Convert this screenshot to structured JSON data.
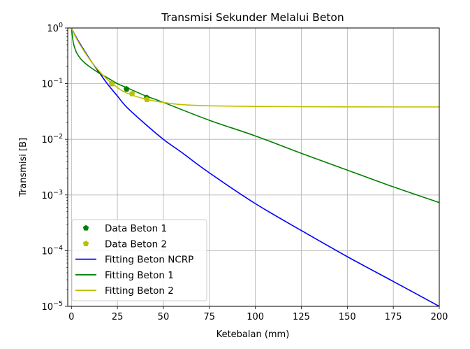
{
  "chart_data": {
    "type": "line",
    "title": "Transmisi Sekunder Melalui Beton",
    "xlabel": "Ketebalan (mm)",
    "ylabel": "Transmisi [B]",
    "xlim": [
      -2,
      200
    ],
    "ylim": [
      1e-05,
      1
    ],
    "yscale": "log",
    "grid": true,
    "legend_position": "lower-left",
    "x_ticks": [
      0,
      25,
      50,
      75,
      100,
      125,
      150,
      175,
      200
    ],
    "y_ticks": [
      {
        "value": 1,
        "base": "10",
        "exp": "0"
      },
      {
        "value": 0.1,
        "base": "10",
        "exp": "−1"
      },
      {
        "value": 0.01,
        "base": "10",
        "exp": "−2"
      },
      {
        "value": 0.001,
        "base": "10",
        "exp": "−3"
      },
      {
        "value": 0.0001,
        "base": "10",
        "exp": "−4"
      },
      {
        "value": 1e-05,
        "base": "10",
        "exp": "−5"
      }
    ],
    "series": [
      {
        "name": "Data Beton 1",
        "kind": "points",
        "marker": "pentagon",
        "color": "#008000",
        "x": [
          22,
          30,
          41
        ],
        "y": [
          0.1,
          0.08,
          0.056
        ]
      },
      {
        "name": "Data Beton 2",
        "kind": "points",
        "marker": "pentagon",
        "color": "#bfbf00",
        "x": [
          22,
          33,
          41
        ],
        "y": [
          0.1,
          0.066,
          0.052
        ]
      },
      {
        "name": "Fitting Beton NCRP",
        "kind": "line",
        "color": "#0000ff",
        "x": [
          0,
          2,
          5,
          10,
          15,
          20,
          25,
          30,
          40,
          50,
          60,
          75,
          100,
          125,
          150,
          175,
          200
        ],
        "y": [
          1,
          0.74,
          0.5,
          0.275,
          0.16,
          0.095,
          0.06,
          0.038,
          0.019,
          0.01,
          0.0058,
          0.0025,
          0.0007,
          0.00023,
          7.8e-05,
          2.8e-05,
          1e-05
        ]
      },
      {
        "name": "Fitting Beton 1",
        "kind": "line",
        "color": "#008000",
        "x": [
          0,
          1,
          2,
          3,
          5,
          7,
          10,
          15,
          20,
          25,
          30,
          40,
          50,
          75,
          100,
          125,
          150,
          175,
          200
        ],
        "y": [
          1,
          0.55,
          0.42,
          0.35,
          0.28,
          0.24,
          0.2,
          0.155,
          0.125,
          0.1,
          0.085,
          0.061,
          0.046,
          0.022,
          0.0115,
          0.0056,
          0.0028,
          0.0014,
          0.00073
        ]
      },
      {
        "name": "Fitting Beton 2",
        "kind": "line",
        "color": "#bfbf00",
        "x": [
          0,
          2,
          5,
          10,
          15,
          20,
          25,
          30,
          40,
          50,
          60,
          75,
          100,
          125,
          150,
          175,
          200
        ],
        "y": [
          1,
          0.72,
          0.48,
          0.27,
          0.17,
          0.115,
          0.085,
          0.068,
          0.053,
          0.046,
          0.042,
          0.04,
          0.039,
          0.0385,
          0.0383,
          0.0382,
          0.0382
        ]
      }
    ],
    "legend": [
      {
        "label": "Data Beton 1",
        "series": 0
      },
      {
        "label": "Data Beton 2",
        "series": 1
      },
      {
        "label": "Fitting Beton NCRP",
        "series": 2
      },
      {
        "label": "Fitting Beton 1",
        "series": 3
      },
      {
        "label": "Fitting Beton 2",
        "series": 4
      }
    ]
  }
}
